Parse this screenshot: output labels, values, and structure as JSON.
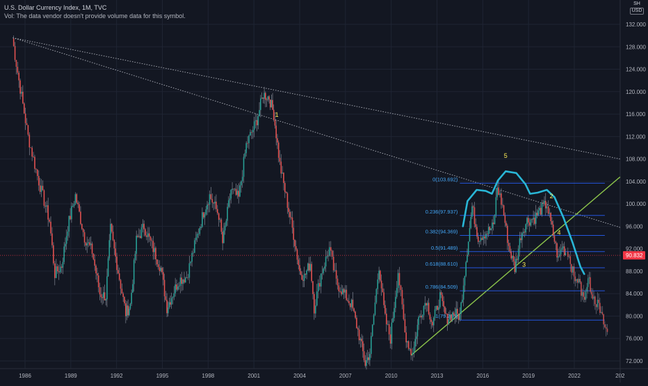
{
  "header": {
    "title": "U.S. Dollar Currency Index, 1M, TVC",
    "vol_text": "Vol: The data vendor doesn't provide volume data for this symbol."
  },
  "currency": {
    "top": "SH",
    "label": "USD"
  },
  "colors": {
    "background": "#131722",
    "up": "#26a69a",
    "down": "#ef5350",
    "support": "#8bc34a",
    "pattern": "#29b6d6",
    "fib": "#2962ff",
    "fib_text": "#42a5f5",
    "wave_label": "#ffee58",
    "price_tag": "#f23645",
    "trend": "#b2b5be"
  },
  "chart_data": {
    "type": "candlestick",
    "title": "U.S. Dollar Currency Index, 1M, TVC",
    "x_ticks": [
      "1986",
      "1989",
      "1992",
      "1995",
      "1998",
      "2001",
      "2004",
      "2007",
      "2010",
      "2013",
      "2016",
      "2019",
      "2022",
      "202"
    ],
    "y_ticks": [
      "72.000",
      "76.000",
      "80.000",
      "84.000",
      "88.000",
      "92.000",
      "96.000",
      "100.000",
      "104.000",
      "108.000",
      "112.000",
      "116.000",
      "120.000",
      "124.000",
      "128.000",
      "132.000"
    ],
    "ylim": [
      70.5,
      134.5
    ],
    "last_price": "90.832",
    "price_path": [
      [
        1985.17,
        129.5
      ],
      [
        1985.6,
        122.0
      ],
      [
        1986.2,
        112.0
      ],
      [
        1986.9,
        104.0
      ],
      [
        1987.6,
        97.0
      ],
      [
        1987.95,
        87.5
      ],
      [
        1988.4,
        89.0
      ],
      [
        1988.8,
        96.0
      ],
      [
        1989.3,
        101.5
      ],
      [
        1989.9,
        94.0
      ],
      [
        1990.4,
        91.5
      ],
      [
        1990.9,
        84.0
      ],
      [
        1991.3,
        83.5
      ],
      [
        1991.6,
        95.5
      ],
      [
        1992.1,
        88.0
      ],
      [
        1992.6,
        80.5
      ],
      [
        1992.9,
        82.0
      ],
      [
        1993.3,
        93.5
      ],
      [
        1993.8,
        96.0
      ],
      [
        1994.4,
        92.0
      ],
      [
        1994.9,
        88.5
      ],
      [
        1995.3,
        81.5
      ],
      [
        1995.6,
        83.5
      ],
      [
        1996.1,
        86.5
      ],
      [
        1996.6,
        87.0
      ],
      [
        1997.2,
        93.5
      ],
      [
        1997.7,
        98.5
      ],
      [
        1998.1,
        101.5
      ],
      [
        1998.7,
        98.0
      ],
      [
        1998.95,
        93.0
      ],
      [
        1999.5,
        102.5
      ],
      [
        2000.0,
        101.0
      ],
      [
        2000.5,
        110.5
      ],
      [
        2001.2,
        115.0
      ],
      [
        2001.6,
        119.5
      ],
      [
        2002.0,
        119.0
      ],
      [
        2002.3,
        116.0
      ],
      [
        2002.7,
        107.0
      ],
      [
        2003.2,
        100.0
      ],
      [
        2003.6,
        94.5
      ],
      [
        2004.0,
        88.0
      ],
      [
        2004.3,
        87.0
      ],
      [
        2004.7,
        89.5
      ],
      [
        2004.95,
        81.5
      ],
      [
        2005.4,
        87.5
      ],
      [
        2005.95,
        92.0
      ],
      [
        2006.4,
        86.0
      ],
      [
        2006.9,
        84.0
      ],
      [
        2007.4,
        82.0
      ],
      [
        2007.9,
        76.5
      ],
      [
        2008.3,
        71.5
      ],
      [
        2008.6,
        73.5
      ],
      [
        2009.2,
        89.0
      ],
      [
        2009.6,
        79.5
      ],
      [
        2009.95,
        76.0
      ],
      [
        2010.45,
        88.0
      ],
      [
        2010.9,
        77.0
      ],
      [
        2011.3,
        73.5
      ],
      [
        2011.5,
        74.5
      ],
      [
        2011.8,
        79.5
      ],
      [
        2012.3,
        83.0
      ],
      [
        2012.7,
        78.5
      ],
      [
        2013.2,
        83.5
      ],
      [
        2013.6,
        79.5
      ],
      [
        2014.1,
        80.5
      ],
      [
        2014.5,
        80.0
      ],
      [
        2014.9,
        90.0
      ],
      [
        2015.3,
        99.5
      ],
      [
        2015.7,
        94.0
      ],
      [
        2016.3,
        95.0
      ],
      [
        2016.7,
        96.0
      ],
      [
        2016.95,
        103.0
      ],
      [
        2017.3,
        99.5
      ],
      [
        2017.7,
        92.5
      ],
      [
        2018.1,
        88.5
      ],
      [
        2018.5,
        94.5
      ],
      [
        2018.9,
        97.0
      ],
      [
        2019.4,
        97.5
      ],
      [
        2019.8,
        99.0
      ],
      [
        2020.2,
        100.0
      ],
      [
        2020.3,
        98.5
      ],
      [
        2020.7,
        93.5
      ],
      [
        2020.95,
        90.0
      ],
      [
        2021.2,
        92.5
      ],
      [
        2021.5,
        91.0
      ]
    ],
    "projection_path": [
      [
        2021.5,
        91.0
      ],
      [
        2021.9,
        88.0
      ],
      [
        2022.3,
        86.0
      ],
      [
        2022.6,
        83.0
      ],
      [
        2022.9,
        86.5
      ],
      [
        2023.2,
        84.0
      ],
      [
        2023.6,
        81.5
      ],
      [
        2024.0,
        78.0
      ],
      [
        2024.25,
        76.5
      ]
    ],
    "fib_levels": [
      {
        "label": "0(103.692)",
        "value": 103.692
      },
      {
        "label": "0.236(97.937)",
        "value": 97.937
      },
      {
        "label": "0.382(94.369)",
        "value": 94.369
      },
      {
        "label": "0.5(91.489)",
        "value": 91.489
      },
      {
        "label": "0.618(88.610)",
        "value": 88.61
      },
      {
        "label": "0.786(84.509)",
        "value": 84.509
      },
      {
        "label": "1(79.285)",
        "value": 79.285
      }
    ],
    "fib_x_range": [
      2014.5,
      2024.0
    ],
    "trendlines": [
      {
        "name": "long-resistance",
        "from": [
          1985.2,
          129.6
        ],
        "to": [
          2025.0,
          108.0
        ],
        "style": "dotted"
      },
      {
        "name": "mid-resistance",
        "from": [
          1985.2,
          129.6
        ],
        "to": [
          2025.0,
          95.8
        ],
        "style": "dotted"
      },
      {
        "name": "support",
        "from": [
          2011.3,
          73.0
        ],
        "to": [
          2025.0,
          104.8
        ],
        "style": "solid"
      }
    ],
    "head_shoulders_path": [
      [
        2014.7,
        96.0
      ],
      [
        2015.0,
        100.5
      ],
      [
        2015.6,
        102.5
      ],
      [
        2016.2,
        102.3
      ],
      [
        2016.6,
        101.8
      ],
      [
        2017.0,
        104.2
      ],
      [
        2017.5,
        105.8
      ],
      [
        2018.2,
        105.5
      ],
      [
        2018.8,
        103.5
      ],
      [
        2019.1,
        101.8
      ],
      [
        2019.6,
        102.0
      ],
      [
        2020.2,
        102.5
      ],
      [
        2020.7,
        101.2
      ],
      [
        2021.3,
        97.5
      ],
      [
        2021.9,
        93.0
      ],
      [
        2022.4,
        88.8
      ],
      [
        2022.65,
        87.5
      ]
    ],
    "wave_labels": [
      {
        "text": "1",
        "x": 2002.5,
        "y": 115.5
      },
      {
        "text": "5",
        "x": 2017.5,
        "y": 108.2
      },
      {
        "text": "2",
        "x": 2020.5,
        "y": 101.0
      },
      {
        "text": "4",
        "x": 2021.0,
        "y": 94.5
      },
      {
        "text": "3",
        "x": 2018.7,
        "y": 88.8
      }
    ]
  }
}
